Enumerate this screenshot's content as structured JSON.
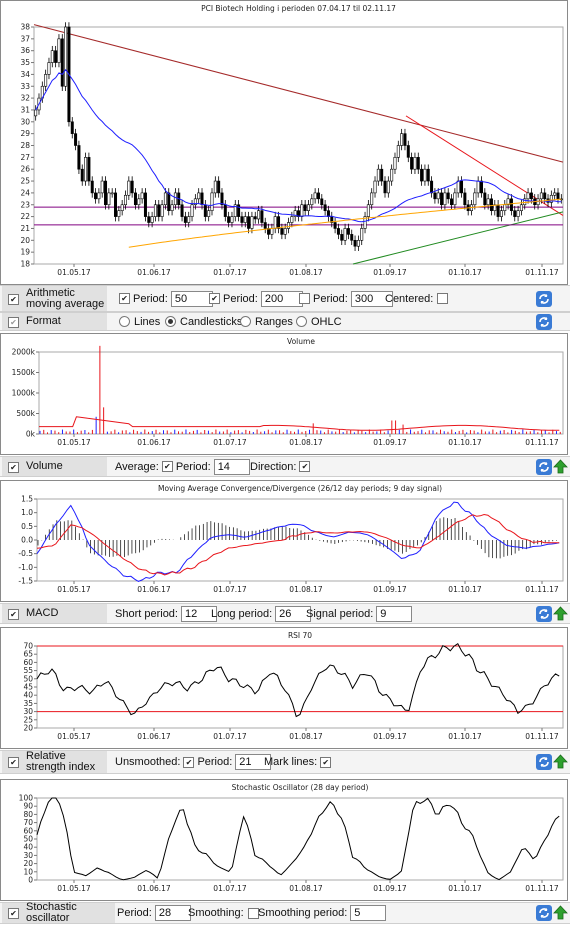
{
  "colors": {
    "candle": "#000000",
    "ma50": "#1f1fff",
    "ma200": "#ffa500",
    "resist": "#a52a2a",
    "support": "#228b22",
    "hline": "#800080",
    "red": "#e8151b",
    "blue": "#1f1fff"
  },
  "xticks": [
    "01.05.17",
    "01.06.17",
    "01.07.17",
    "01.08.17",
    "01.09.17",
    "01.10.17",
    "01.11.17"
  ],
  "price": {
    "title": "PCI Biotech Holding i perioden 07.04.17 til 02.11.17",
    "yticks": [
      "38",
      "37",
      "36",
      "35",
      "34",
      "33",
      "32",
      "31",
      "30",
      "29",
      "28",
      "27",
      "26",
      "25",
      "24",
      "23",
      "22",
      "21",
      "20",
      "19",
      "18"
    ],
    "hlines": [
      22.8,
      21.3
    ],
    "close_series": [
      31,
      32,
      33,
      34,
      35,
      36,
      35,
      37,
      33,
      38,
      30,
      29,
      28,
      26,
      25,
      27,
      25,
      24,
      23.5,
      24,
      25,
      23,
      24,
      24,
      22,
      22.5,
      23,
      23.8,
      25,
      24,
      23,
      23.5,
      24,
      22,
      21.5,
      22,
      23,
      22,
      23,
      24,
      22.5,
      23,
      24,
      23,
      22,
      21.5,
      22,
      23,
      23.5,
      24,
      23,
      22,
      22.5,
      24,
      25,
      24,
      23,
      22,
      21.5,
      22,
      23,
      22,
      21.5,
      22,
      21,
      22,
      21.8,
      22.5,
      21.5,
      21,
      20.5,
      21,
      22,
      21,
      20.5,
      21,
      21.5,
      22,
      22.5,
      22,
      23,
      22.5,
      23,
      23.5,
      24,
      23.5,
      23,
      22.5,
      22,
      21.5,
      21,
      20.5,
      20,
      21,
      20.5,
      20,
      19.5,
      20,
      21,
      22,
      23,
      24,
      25,
      26,
      25,
      24,
      25,
      26,
      27,
      28,
      29,
      28,
      27,
      26,
      27,
      26,
      25,
      26,
      25,
      24,
      23.5,
      24,
      23,
      24,
      23.5,
      23,
      24,
      25,
      24,
      23,
      22.5,
      23,
      24,
      25,
      24,
      23,
      23.5,
      22.5,
      23,
      22,
      22.5,
      23,
      23.5,
      22.5,
      22,
      22.5,
      23,
      23.5,
      24,
      23.5,
      23,
      23.5,
      24,
      23.5,
      23.2,
      23.8,
      24,
      23.5,
      23.5
    ],
    "controls": {
      "label": "Arithmetic moving average",
      "period1_label": "Period:",
      "period1": "50",
      "period2_label": "Period:",
      "period2": "200",
      "period3_label": "Period:",
      "period3": "300",
      "centered_label": "Centered:"
    },
    "format": {
      "label": "Format",
      "options": [
        "Lines",
        "Candlesticks",
        "Ranges",
        "OHLC"
      ],
      "selected": "Candlesticks"
    }
  },
  "volume": {
    "title": "Volume",
    "yticks": [
      "2000k",
      "1500k",
      "1000k",
      "500k",
      "0k"
    ],
    "controls": {
      "label": "Volume",
      "average_label": "Average:",
      "period_label": "Period:",
      "period": "14",
      "direction_label": "Direction:"
    }
  },
  "macd": {
    "title": "Moving Average Convergence/Divergence (26/12 day periods; 9 day signal)",
    "yticks": [
      "1.5",
      "1.0",
      "0.5",
      "0.0",
      "-0.5",
      "-1.0",
      "-1.5"
    ],
    "controls": {
      "label": "MACD",
      "short_label": "Short period:",
      "short": "12",
      "long_label": "Long period:",
      "long": "26",
      "signal_label": "Signal period:",
      "signal": "9"
    }
  },
  "rsi": {
    "title": "RSI 70",
    "yticks": [
      "70",
      "65",
      "60",
      "55",
      "50",
      "45",
      "40",
      "35",
      "30",
      "25",
      "20"
    ],
    "controls": {
      "label": "Relative strength index",
      "unsmoothed_label": "Unsmoothed:",
      "period_label": "Period:",
      "period": "21",
      "marklines_label": "Mark lines:"
    }
  },
  "stoch": {
    "title": "Stochastic Oscillator (28 day period)",
    "yticks": [
      "100",
      "90",
      "80",
      "70",
      "60",
      "50",
      "40",
      "30",
      "20",
      "10",
      "0"
    ],
    "controls": {
      "label": "Stochastic oscillator",
      "period_label": "Period:",
      "period": "28",
      "smoothing_label": "Smoothing:",
      "smoothing_period_label": "Smoothing period:",
      "smoothing_period": "5"
    }
  }
}
